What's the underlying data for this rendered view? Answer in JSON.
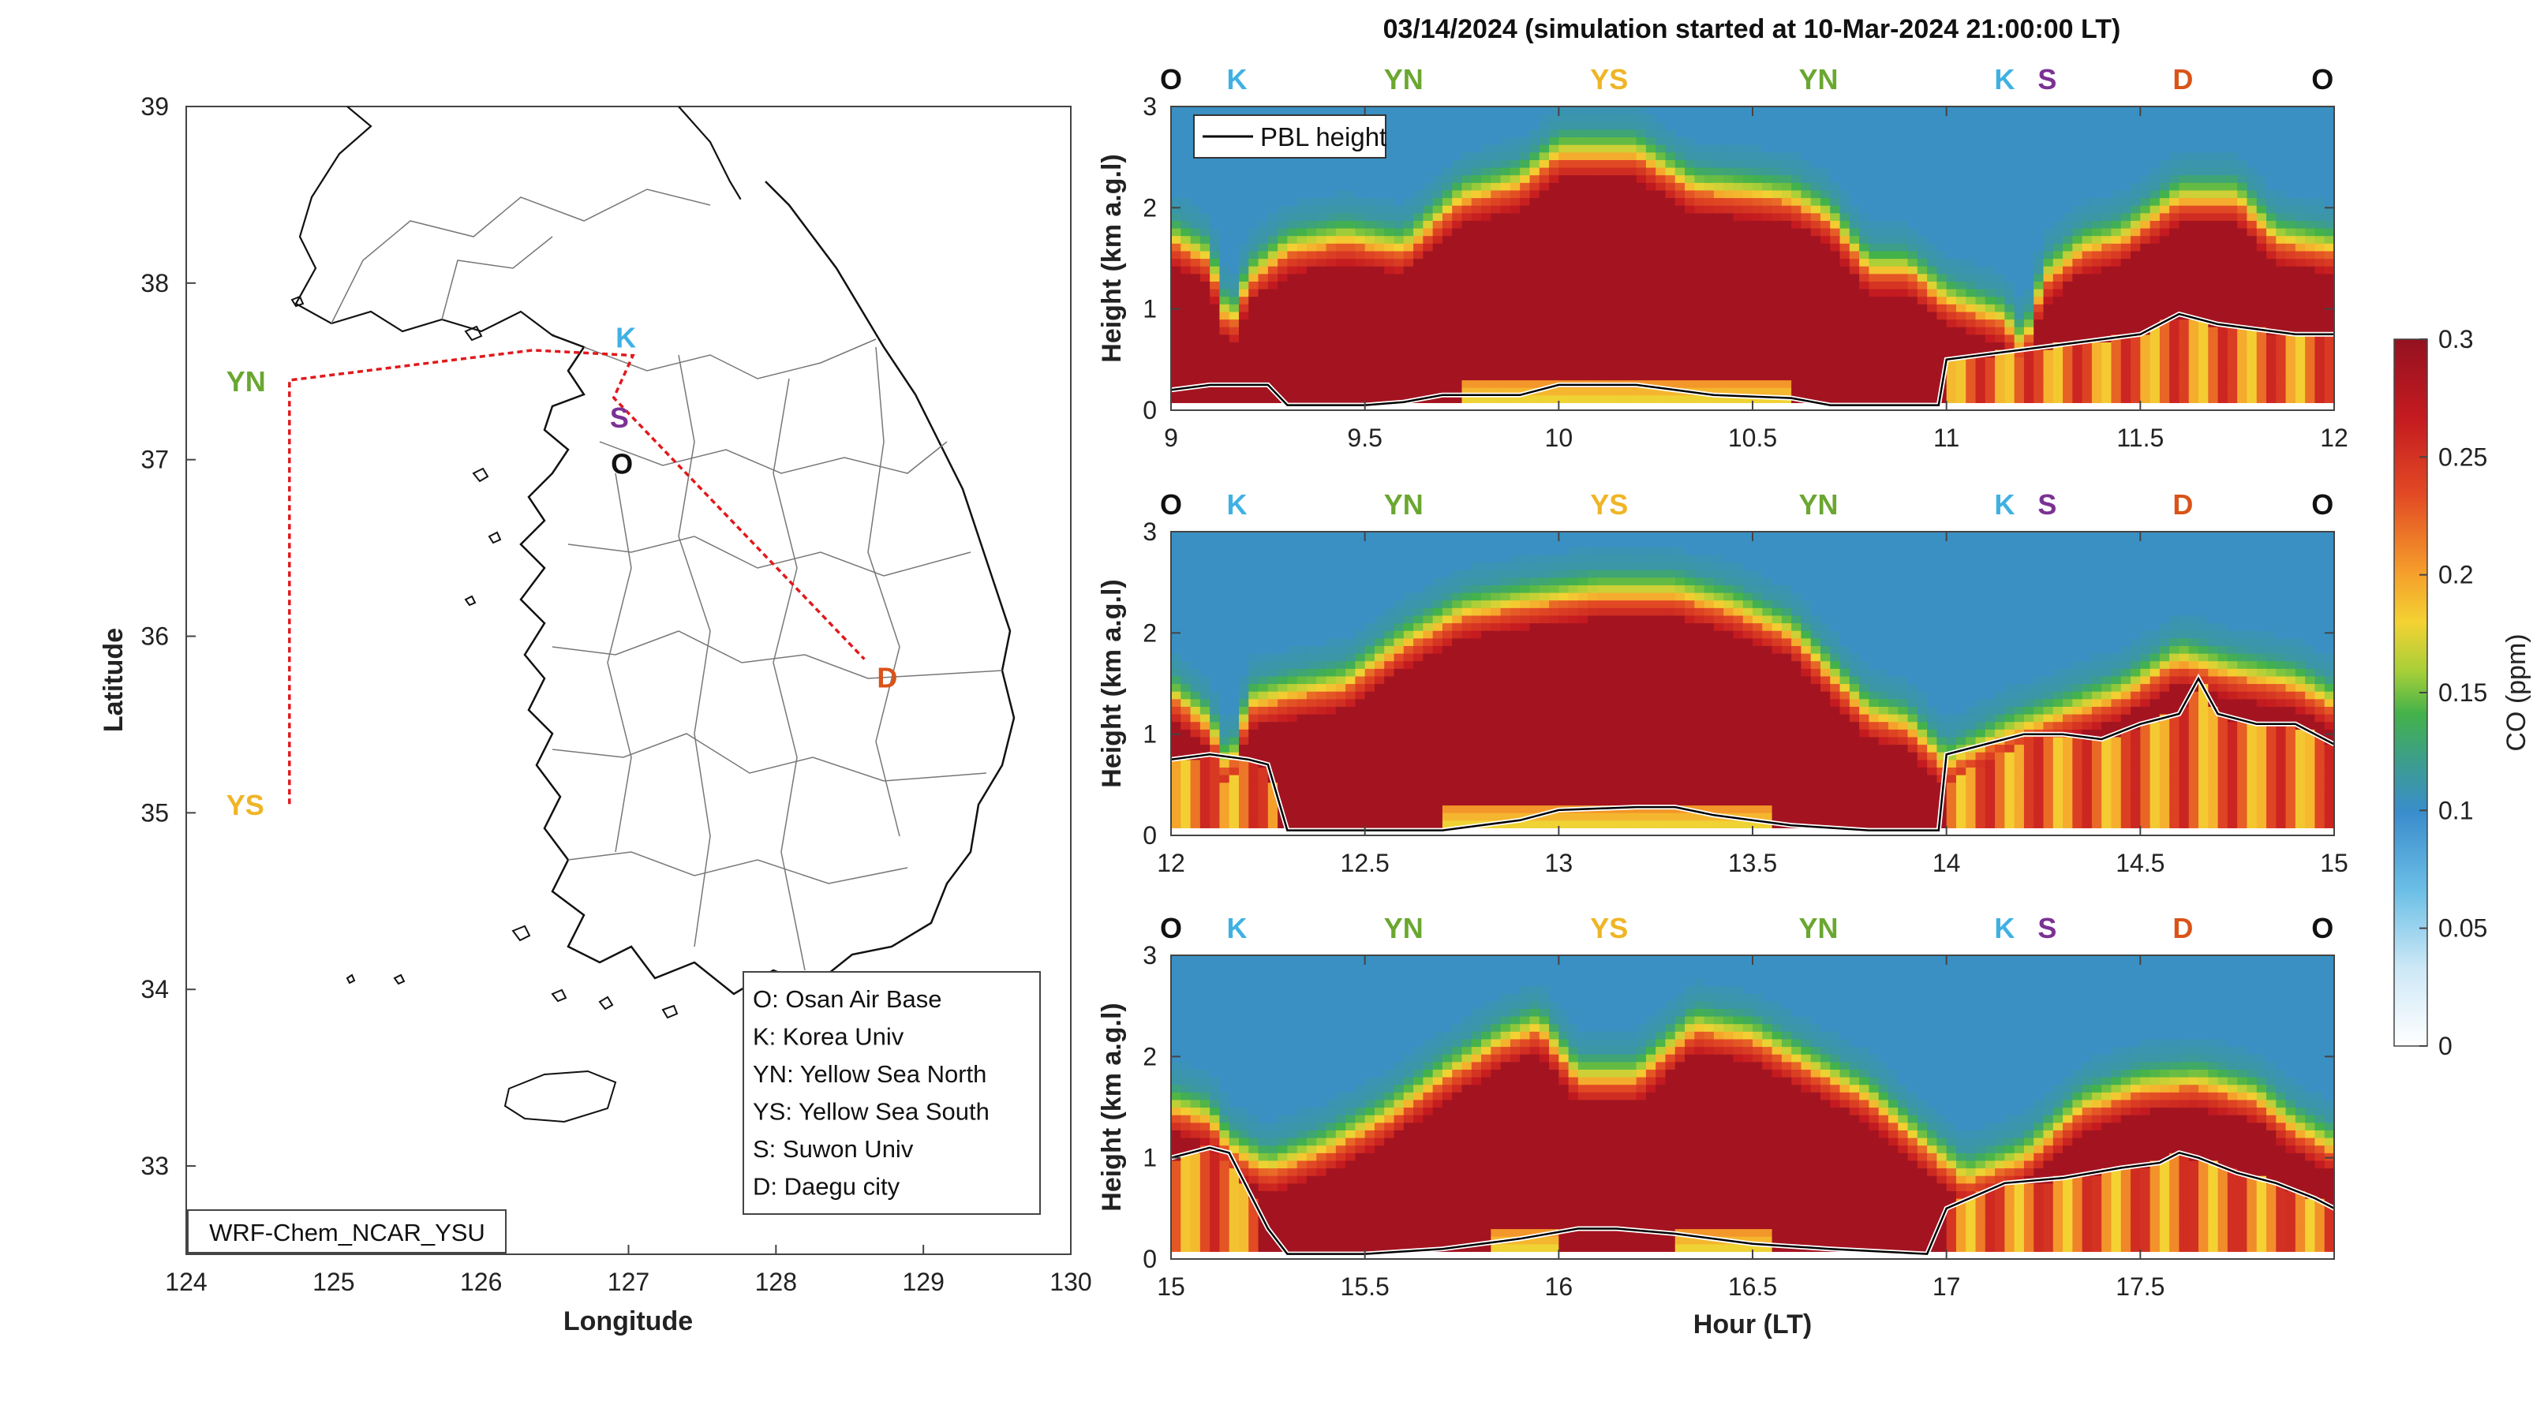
{
  "title": "03/14/2024 (simulation started at 10-Mar-2024 21:00:00 LT)",
  "colors": {
    "O": "#111111",
    "K": "#3fb1e3",
    "YN": "#6aa731",
    "YS": "#efb526",
    "S": "#7b3294",
    "D": "#d95319",
    "track": "#e0191c",
    "pbl": "#000000"
  },
  "chart_data": [
    {
      "type": "map",
      "xlabel": "Longitude",
      "ylabel": "Latitude",
      "xlim": [
        124,
        130
      ],
      "ylim": [
        32.5,
        39
      ],
      "xticks": [
        "124",
        "125",
        "126",
        "127",
        "128",
        "129",
        "130"
      ],
      "yticks": [
        "39",
        "38",
        "37",
        "36",
        "35",
        "34",
        "33"
      ],
      "model_label": "WRF-Chem_NCAR_YSU",
      "sites": [
        {
          "code": "O",
          "name": "Osan Air Base",
          "lon": 127.03,
          "lat": 37.09
        },
        {
          "code": "K",
          "name": "Korea Univ",
          "lon": 127.03,
          "lat": 37.59
        },
        {
          "code": "YN",
          "name": "Yellow Sea North",
          "lon": 124.7,
          "lat": 37.45
        },
        {
          "code": "YS",
          "name": "Yellow Sea South",
          "lon": 124.7,
          "lat": 35.05
        },
        {
          "code": "S",
          "name": "Suwon Univ",
          "lon": 126.97,
          "lat": 37.28
        },
        {
          "code": "D",
          "name": "Daegu city",
          "lon": 128.6,
          "lat": 35.87
        }
      ],
      "legend": [
        "O: Osan Air Base",
        "K: Korea Univ",
        "YN: Yellow Sea North",
        "YS: Yellow Sea South",
        "S: Suwon Univ",
        "D: Daegu city"
      ]
    },
    {
      "type": "heatmap",
      "ylabel": "Height (km a.g.l)",
      "xlim": [
        9,
        12
      ],
      "ylim": [
        0,
        3
      ],
      "xticks": [
        "9",
        "9.5",
        "10",
        "10.5",
        "11",
        "11.5",
        "12"
      ],
      "yticks": [
        "0",
        "1",
        "2",
        "3"
      ],
      "site_markers": [
        {
          "label": "O",
          "x": 9.0
        },
        {
          "label": "K",
          "x": 9.17
        },
        {
          "label": "YN",
          "x": 9.6
        },
        {
          "label": "YS",
          "x": 10.13
        },
        {
          "label": "YN",
          "x": 10.67
        },
        {
          "label": "K",
          "x": 11.15
        },
        {
          "label": "S",
          "x": 11.26
        },
        {
          "label": "D",
          "x": 11.61
        },
        {
          "label": "O",
          "x": 11.97
        }
      ],
      "legend": "PBL height",
      "pbl_x": [
        9.0,
        9.1,
        9.25,
        9.3,
        9.5,
        9.6,
        9.7,
        9.9,
        10.0,
        10.2,
        10.3,
        10.4,
        10.6,
        10.7,
        10.9,
        10.98,
        11.0,
        11.1,
        11.2,
        11.3,
        11.4,
        11.5,
        11.6,
        11.7,
        11.8,
        11.9,
        12.0
      ],
      "pbl_y": [
        0.2,
        0.25,
        0.25,
        0.05,
        0.05,
        0.08,
        0.15,
        0.15,
        0.25,
        0.25,
        0.2,
        0.15,
        0.12,
        0.05,
        0.05,
        0.05,
        0.5,
        0.55,
        0.6,
        0.65,
        0.7,
        0.75,
        0.95,
        0.85,
        0.8,
        0.75,
        0.75
      ],
      "ridge_x": [
        9.0,
        9.1,
        9.15,
        9.2,
        9.3,
        9.45,
        9.6,
        9.75,
        9.9,
        10.0,
        10.2,
        10.35,
        10.5,
        10.6,
        10.7,
        10.8,
        10.9,
        11.0,
        11.15,
        11.2,
        11.25,
        11.35,
        11.45,
        11.6,
        11.75,
        11.85,
        12.0
      ],
      "ridge_y": [
        1.9,
        1.7,
        1.0,
        1.5,
        1.8,
        1.9,
        1.8,
        2.3,
        2.45,
        2.75,
        2.75,
        2.4,
        2.35,
        2.3,
        2.1,
        1.6,
        1.6,
        1.3,
        1.1,
        0.8,
        1.5,
        1.8,
        1.9,
        2.3,
        2.3,
        1.9,
        1.8
      ]
    },
    {
      "type": "heatmap",
      "ylabel": "Height (km a.g.l)",
      "xlim": [
        12,
        15
      ],
      "ylim": [
        0,
        3
      ],
      "xticks": [
        "12",
        "12.5",
        "13",
        "13.5",
        "14",
        "14.5",
        "15"
      ],
      "yticks": [
        "0",
        "1",
        "2",
        "3"
      ],
      "site_markers": [
        {
          "label": "O",
          "x": 12.0
        },
        {
          "label": "K",
          "x": 12.17
        },
        {
          "label": "YN",
          "x": 12.6
        },
        {
          "label": "YS",
          "x": 13.13
        },
        {
          "label": "YN",
          "x": 13.67
        },
        {
          "label": "K",
          "x": 14.15
        },
        {
          "label": "S",
          "x": 14.26
        },
        {
          "label": "D",
          "x": 14.61
        },
        {
          "label": "O",
          "x": 14.97
        }
      ],
      "pbl_x": [
        12.0,
        12.1,
        12.2,
        12.25,
        12.3,
        12.5,
        12.7,
        12.9,
        13.0,
        13.2,
        13.3,
        13.4,
        13.6,
        13.8,
        13.98,
        14.0,
        14.1,
        14.2,
        14.3,
        14.4,
        14.5,
        14.6,
        14.65,
        14.7,
        14.8,
        14.9,
        15.0
      ],
      "pbl_y": [
        0.75,
        0.8,
        0.75,
        0.7,
        0.05,
        0.05,
        0.05,
        0.15,
        0.25,
        0.28,
        0.28,
        0.2,
        0.1,
        0.05,
        0.05,
        0.8,
        0.9,
        1.0,
        1.0,
        0.95,
        1.1,
        1.2,
        1.55,
        1.2,
        1.1,
        1.1,
        0.9
      ],
      "ridge_x": [
        12.0,
        12.1,
        12.15,
        12.2,
        12.3,
        12.45,
        12.6,
        12.75,
        12.9,
        13.1,
        13.3,
        13.45,
        13.6,
        13.7,
        13.8,
        13.9,
        14.0,
        14.15,
        14.3,
        14.45,
        14.6,
        14.75,
        14.9,
        15.0
      ],
      "ridge_y": [
        1.6,
        1.3,
        0.8,
        1.5,
        1.6,
        1.7,
        2.1,
        2.4,
        2.5,
        2.6,
        2.6,
        2.45,
        2.2,
        1.8,
        1.4,
        1.3,
        0.9,
        1.2,
        1.4,
        1.6,
        1.95,
        1.8,
        1.7,
        1.5
      ]
    },
    {
      "type": "heatmap",
      "ylabel": "Height (km a.g.l)",
      "xlabel": "Hour (LT)",
      "xlim": [
        15,
        18
      ],
      "ylim": [
        0,
        3
      ],
      "xticks": [
        "15",
        "15.5",
        "16",
        "16.5",
        "17",
        "17.5"
      ],
      "yticks": [
        "0",
        "1",
        "2",
        "3"
      ],
      "site_markers": [
        {
          "label": "O",
          "x": 15.0
        },
        {
          "label": "K",
          "x": 15.17
        },
        {
          "label": "YN",
          "x": 15.6
        },
        {
          "label": "YS",
          "x": 16.13
        },
        {
          "label": "YN",
          "x": 16.67
        },
        {
          "label": "K",
          "x": 17.15
        },
        {
          "label": "S",
          "x": 17.26
        },
        {
          "label": "D",
          "x": 17.61
        },
        {
          "label": "O",
          "x": 17.97
        }
      ],
      "pbl_x": [
        15.0,
        15.05,
        15.1,
        15.15,
        15.25,
        15.3,
        15.5,
        15.7,
        15.9,
        16.05,
        16.15,
        16.3,
        16.5,
        16.7,
        16.95,
        17.0,
        17.15,
        17.3,
        17.45,
        17.55,
        17.6,
        17.65,
        17.75,
        17.85,
        17.95,
        18.0
      ],
      "pbl_y": [
        1.0,
        1.05,
        1.1,
        1.05,
        0.3,
        0.05,
        0.05,
        0.1,
        0.2,
        0.3,
        0.3,
        0.25,
        0.15,
        0.1,
        0.05,
        0.5,
        0.75,
        0.8,
        0.9,
        0.95,
        1.05,
        1.0,
        0.85,
        0.75,
        0.6,
        0.5
      ],
      "ridge_x": [
        15.0,
        15.1,
        15.15,
        15.25,
        15.4,
        15.55,
        15.7,
        15.85,
        15.95,
        16.05,
        16.2,
        16.35,
        16.5,
        16.65,
        16.8,
        16.95,
        17.05,
        17.2,
        17.35,
        17.5,
        17.65,
        17.8,
        17.9,
        18.0
      ],
      "ridge_y": [
        1.7,
        1.6,
        1.3,
        1.1,
        1.3,
        1.6,
        2.0,
        2.35,
        2.5,
        2.0,
        2.0,
        2.5,
        2.4,
        2.1,
        1.8,
        1.3,
        1.0,
        1.2,
        1.7,
        1.9,
        1.95,
        1.8,
        1.5,
        1.3
      ]
    },
    {
      "type": "colorbar",
      "label": "CO (ppm)",
      "range": [
        0,
        0.3
      ],
      "ticks": [
        "0",
        "0.05",
        "0.1",
        "0.15",
        "0.2",
        "0.25",
        "0.3"
      ],
      "colormap": [
        "#ffffff",
        "#d8eef9",
        "#8fd0ec",
        "#3fa2d9",
        "#3b84c4",
        "#4bb84a",
        "#b9d434",
        "#f5d031",
        "#f59d2a",
        "#e24a24",
        "#c0161f",
        "#981220"
      ]
    }
  ]
}
